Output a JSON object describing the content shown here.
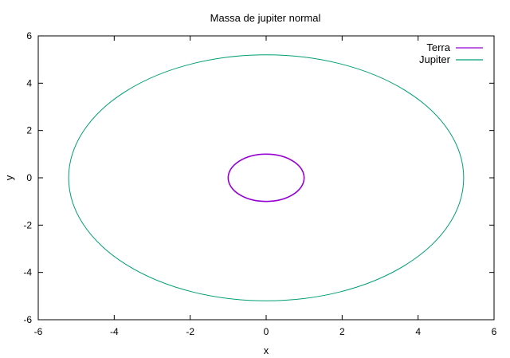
{
  "chart_data": {
    "type": "line",
    "title": "Massa de jupiter normal",
    "xlabel": "x",
    "ylabel": "y",
    "xlim": [
      -6,
      6
    ],
    "ylim": [
      -6,
      6
    ],
    "x_ticks": [
      "-6",
      "-4",
      "-2",
      "0",
      "2",
      "4",
      "6"
    ],
    "y_ticks": [
      "-6",
      "-4",
      "-2",
      "0",
      "2",
      "4",
      "6"
    ],
    "grid": false,
    "legend_position": "top-right",
    "series": [
      {
        "name": "Terra",
        "color": "#9400d3",
        "shape": "circular orbit",
        "center": [
          0,
          0
        ],
        "radius": 1.0
      },
      {
        "name": "Jupiter",
        "color": "#009e73",
        "shape": "circular orbit",
        "center": [
          0,
          0
        ],
        "radius": 5.2
      }
    ]
  }
}
